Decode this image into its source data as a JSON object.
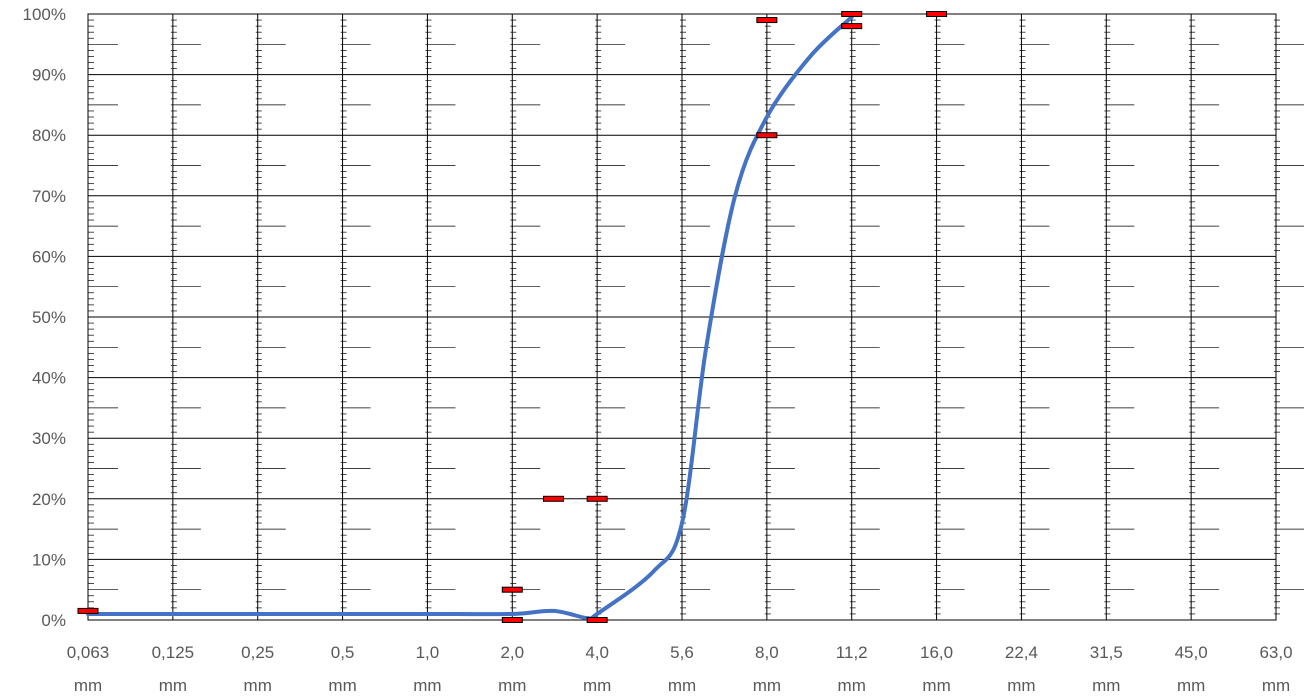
{
  "chart_data": {
    "type": "line",
    "title": "",
    "xlabel": "",
    "ylabel": "",
    "x_scale": "log",
    "x_categories": [
      "0,063 mm",
      "0,125 mm",
      "0,25 mm",
      "0,5 mm",
      "1,0 mm",
      "2,0 mm",
      "4,0 mm",
      "5,6 mm",
      "8,0 mm",
      "11,2 mm",
      "16,0 mm",
      "22,4 mm",
      "31,5 mm",
      "45,0 mm",
      "63,0 mm"
    ],
    "x_tick_labels": [
      {
        "value": "0,063",
        "unit": "mm"
      },
      {
        "value": "0,125",
        "unit": "mm"
      },
      {
        "value": "0,25",
        "unit": "mm"
      },
      {
        "value": "0,5",
        "unit": "mm"
      },
      {
        "value": "1,0",
        "unit": "mm"
      },
      {
        "value": "2,0",
        "unit": "mm"
      },
      {
        "value": "4,0",
        "unit": "mm"
      },
      {
        "value": "5,6",
        "unit": "mm"
      },
      {
        "value": "8,0",
        "unit": "mm"
      },
      {
        "value": "11,2",
        "unit": "mm"
      },
      {
        "value": "16,0",
        "unit": "mm"
      },
      {
        "value": "22,4",
        "unit": "mm"
      },
      {
        "value": "31,5",
        "unit": "mm"
      },
      {
        "value": "45,0",
        "unit": "mm"
      },
      {
        "value": "63,0",
        "unit": "mm"
      }
    ],
    "x_values_mm": [
      0.063,
      0.125,
      0.25,
      0.5,
      1.0,
      2.0,
      4.0,
      5.6,
      8.0,
      11.2,
      16.0,
      22.4,
      31.5,
      45.0,
      63.0
    ],
    "y_tick_labels": [
      "0%",
      "10%",
      "20%",
      "30%",
      "40%",
      "50%",
      "60%",
      "70%",
      "80%",
      "90%",
      "100%"
    ],
    "ylim": [
      0,
      100
    ],
    "grid": true,
    "series": [
      {
        "type": "line",
        "color": "#4472C4",
        "points": [
          {
            "x": 0.063,
            "y": 1.0
          },
          {
            "x": 0.125,
            "y": 1.0
          },
          {
            "x": 0.25,
            "y": 1.0
          },
          {
            "x": 0.5,
            "y": 1.0
          },
          {
            "x": 1.0,
            "y": 1.0
          },
          {
            "x": 2.0,
            "y": 1.0
          },
          {
            "x": 2.8,
            "y": 1.5
          },
          {
            "x": 3.7,
            "y": 0.3
          },
          {
            "x": 4.0,
            "y": 1.0
          },
          {
            "x": 5.0,
            "y": 8.0
          },
          {
            "x": 5.6,
            "y": 16.0
          },
          {
            "x": 6.2,
            "y": 45.0
          },
          {
            "x": 7.0,
            "y": 70.0
          },
          {
            "x": 8.0,
            "y": 83.0
          },
          {
            "x": 9.5,
            "y": 93.0
          },
          {
            "x": 11.2,
            "y": 99.5
          }
        ]
      },
      {
        "type": "markers",
        "marker": "dash",
        "color": "#FF0000",
        "points": [
          {
            "x": 0.063,
            "y": 1.5
          },
          {
            "x": 2.0,
            "y": 5.0
          },
          {
            "x": 2.0,
            "y": 0.0
          },
          {
            "x": 2.8,
            "y": 20.0
          },
          {
            "x": 4.0,
            "y": 20.0
          },
          {
            "x": 4.0,
            "y": 0.0
          },
          {
            "x": 8.0,
            "y": 99.0
          },
          {
            "x": 8.0,
            "y": 80.0
          },
          {
            "x": 11.2,
            "y": 100.0
          },
          {
            "x": 11.2,
            "y": 98.0
          },
          {
            "x": 16.0,
            "y": 100.0
          }
        ]
      }
    ]
  }
}
